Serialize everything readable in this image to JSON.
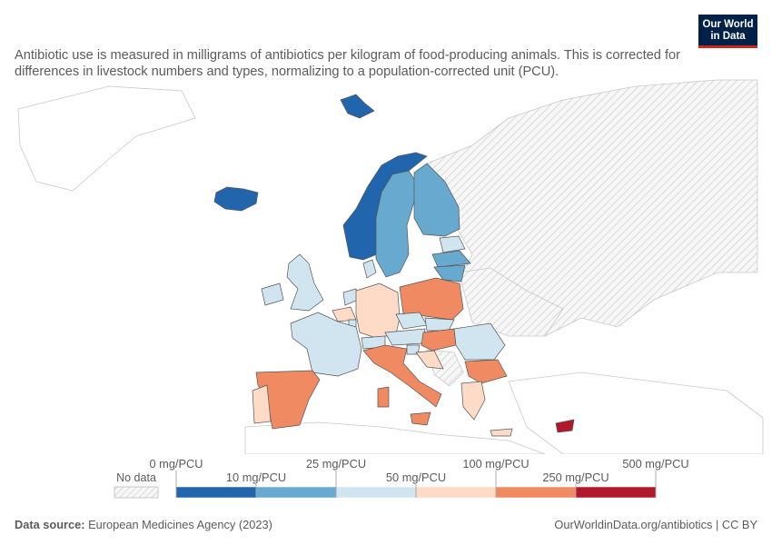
{
  "header": {
    "subtitle": "Antibiotic use is measured in milligrams of antibiotics per kilogram of food-producing animals. This is corrected for differences in livestock numbers and types, normalizing to a population-corrected unit (PCU).",
    "logo_line1": "Our World",
    "logo_line2": "in Data"
  },
  "legend": {
    "no_data_label": "No data",
    "top_labels": [
      "0 mg/PCU",
      "25 mg/PCU",
      "100 mg/PCU",
      "500 mg/PCU"
    ],
    "bottom_labels": [
      "10 mg/PCU",
      "50 mg/PCU",
      "250 mg/PCU"
    ],
    "bins": [
      {
        "range": "0–10 mg/PCU",
        "color": "#2166ac"
      },
      {
        "range": "10–25 mg/PCU",
        "color": "#67a9cf"
      },
      {
        "range": "25–50 mg/PCU",
        "color": "#d1e5f0"
      },
      {
        "range": "50–100 mg/PCU",
        "color": "#fddbc7"
      },
      {
        "range": "100–250 mg/PCU",
        "color": "#ef8a62"
      },
      {
        "range": "250–500 mg/PCU",
        "color": "#b2182b"
      }
    ]
  },
  "colors": {
    "bin1": "#2166ac",
    "bin2": "#67a9cf",
    "bin3": "#d1e5f0",
    "bin4": "#fddbc7",
    "bin5": "#ef8a62",
    "bin6": "#b2182b",
    "no_data": "#e6e6e6",
    "outline": "#bdbdbd"
  },
  "footer": {
    "source_label": "Data source:",
    "source_text": "European Medicines Agency (2023)",
    "link_text": "OurWorldinData.org/antibiotics | CC BY"
  }
}
